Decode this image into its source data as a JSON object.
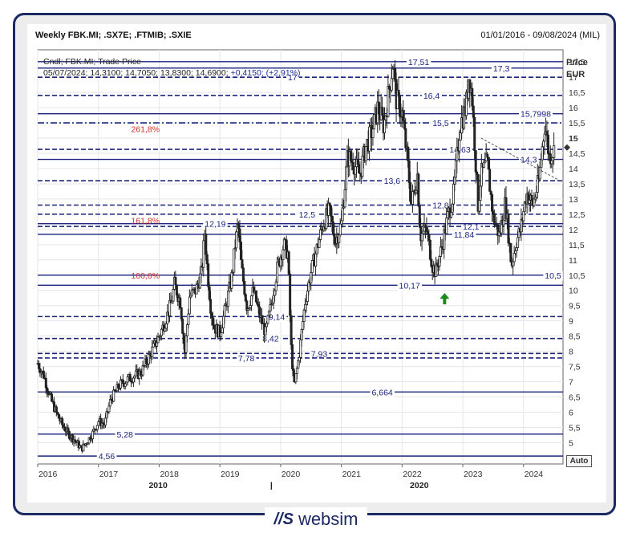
{
  "header": {
    "title": "Weekly FBK.MI; .SX7E; .FTMIB; .SXIE",
    "date_range": "01/01/2016 - 09/08/2024 (MIL)",
    "series_info": "Cndl; FBK.MI; Trade Price",
    "ohlc": "05/07/2024; 14,3100; 14,7050; 13,8300; 14,6900;",
    "change": "+0,4150; (+2,91%)"
  },
  "axis": {
    "price_label": "Price",
    "currency_label": "EUR",
    "auto_button": "Auto"
  },
  "brand": {
    "mark": "//S",
    "name": "websim"
  },
  "colors": {
    "level_line": "#1a237e",
    "fib_label": "#d32f2f",
    "candle": "#222222",
    "arrow": "#1b8a1b"
  },
  "chart_data": {
    "type": "candlestick",
    "y_range": [
      4.3,
      17.9
    ],
    "y_ticks": [
      "17,5",
      "17",
      "16,5",
      "16",
      "15,5",
      "15",
      "14,5",
      "14",
      "13,5",
      "13",
      "12,5",
      "12",
      "11,5",
      "11",
      "10,5",
      "10",
      "9,5",
      "9",
      "8,5",
      "8",
      "7,5",
      "7",
      "6,5",
      "6",
      "5,5",
      "5"
    ],
    "y_tick_values": [
      17.5,
      17,
      16.5,
      16,
      15.5,
      15,
      14.5,
      14,
      13.5,
      13,
      12.5,
      12,
      11.5,
      11,
      10.5,
      10,
      9.5,
      9,
      8.5,
      8,
      7.5,
      7,
      6.5,
      6,
      5.5,
      5
    ],
    "x_ticks": [
      "2016",
      "2017",
      "2018",
      "2019",
      "2020",
      "2021",
      "2022",
      "2023",
      "2024"
    ],
    "x_tick_years": [
      2016,
      2017,
      2018,
      2019,
      2020,
      2021,
      2022,
      2023,
      2024
    ],
    "x_range": [
      2016.0,
      2024.65
    ],
    "secondary_x_labels": [
      {
        "label": "2010",
        "year": 2018.0
      },
      {
        "label": "|",
        "year": 2020.0
      },
      {
        "label": "2020",
        "year": 2022.3
      }
    ],
    "price_path": [
      [
        2016.0,
        7.6
      ],
      [
        2016.1,
        7.2
      ],
      [
        2016.2,
        6.5
      ],
      [
        2016.3,
        6.0
      ],
      [
        2016.4,
        5.6
      ],
      [
        2016.5,
        5.3
      ],
      [
        2016.6,
        5.1
      ],
      [
        2016.72,
        4.8
      ],
      [
        2016.8,
        5.0
      ],
      [
        2016.9,
        5.3
      ],
      [
        2017.0,
        5.7
      ],
      [
        2017.1,
        5.6
      ],
      [
        2017.2,
        6.4
      ],
      [
        2017.35,
        6.9
      ],
      [
        2017.5,
        7.1
      ],
      [
        2017.7,
        7.3
      ],
      [
        2017.85,
        7.9
      ],
      [
        2018.0,
        8.5
      ],
      [
        2018.1,
        9.0
      ],
      [
        2018.2,
        9.6
      ],
      [
        2018.25,
        10.2
      ],
      [
        2018.35,
        9.6
      ],
      [
        2018.42,
        7.9
      ],
      [
        2018.5,
        9.8
      ],
      [
        2018.6,
        10.0
      ],
      [
        2018.7,
        10.6
      ],
      [
        2018.75,
        11.9
      ],
      [
        2018.8,
        10.5
      ],
      [
        2018.85,
        9.4
      ],
      [
        2018.9,
        8.8
      ],
      [
        2019.0,
        8.6
      ],
      [
        2019.1,
        9.5
      ],
      [
        2019.2,
        10.5
      ],
      [
        2019.25,
        11.5
      ],
      [
        2019.3,
        12.2
      ],
      [
        2019.35,
        10.8
      ],
      [
        2019.45,
        9.4
      ],
      [
        2019.55,
        10.0
      ],
      [
        2019.65,
        9.2
      ],
      [
        2019.75,
        8.6
      ],
      [
        2019.85,
        9.6
      ],
      [
        2019.95,
        10.8
      ],
      [
        2020.05,
        11.5
      ],
      [
        2020.12,
        11.2
      ],
      [
        2020.17,
        8.2
      ],
      [
        2020.22,
        6.8
      ],
      [
        2020.3,
        7.8
      ],
      [
        2020.4,
        9.6
      ],
      [
        2020.5,
        10.6
      ],
      [
        2020.6,
        11.4
      ],
      [
        2020.7,
        12.2
      ],
      [
        2020.8,
        12.6
      ],
      [
        2020.9,
        11.6
      ],
      [
        2021.0,
        12.2
      ],
      [
        2021.1,
        14.4
      ],
      [
        2021.2,
        14.2
      ],
      [
        2021.3,
        13.8
      ],
      [
        2021.4,
        14.7
      ],
      [
        2021.5,
        15.2
      ],
      [
        2021.6,
        16.0
      ],
      [
        2021.7,
        15.4
      ],
      [
        2021.8,
        16.8
      ],
      [
        2021.85,
        17.5
      ],
      [
        2021.9,
        16.3
      ],
      [
        2022.0,
        15.8
      ],
      [
        2022.1,
        14.0
      ],
      [
        2022.15,
        12.8
      ],
      [
        2022.25,
        13.8
      ],
      [
        2022.3,
        11.8
      ],
      [
        2022.4,
        12.0
      ],
      [
        2022.5,
        10.8
      ],
      [
        2022.55,
        10.6
      ],
      [
        2022.65,
        11.4
      ],
      [
        2022.75,
        12.4
      ],
      [
        2022.85,
        13.2
      ],
      [
        2022.95,
        15.4
      ],
      [
        2023.05,
        16.0
      ],
      [
        2023.1,
        17.1
      ],
      [
        2023.15,
        16.4
      ],
      [
        2023.25,
        12.8
      ],
      [
        2023.3,
        13.8
      ],
      [
        2023.4,
        14.2
      ],
      [
        2023.5,
        12.4
      ],
      [
        2023.6,
        11.8
      ],
      [
        2023.7,
        12.9
      ],
      [
        2023.8,
        10.8
      ],
      [
        2023.88,
        11.6
      ],
      [
        2023.95,
        12.0
      ],
      [
        2024.05,
        13.2
      ],
      [
        2024.15,
        12.8
      ],
      [
        2024.25,
        13.6
      ],
      [
        2024.35,
        15.5
      ],
      [
        2024.42,
        14.4
      ],
      [
        2024.5,
        14.6
      ]
    ],
    "levels": [
      {
        "value": 17.51,
        "label": "17,51",
        "style": "solid",
        "label_year": 2022.1
      },
      {
        "value": 17.3,
        "label": "17,3",
        "style": "solid",
        "label_year": 2023.5
      },
      {
        "value": 17,
        "label": "17",
        "style": "dashed",
        "label_year": 2020.12
      },
      {
        "value": 16.4,
        "label": "16,4",
        "style": "dashed",
        "label_year": 2022.35
      },
      {
        "value": 15.7998,
        "label": "15,7998",
        "style": "solid",
        "label_year": 2023.95
      },
      {
        "value": 15.5,
        "label": "15,5",
        "style": "dashdot",
        "label_year": 2022.5
      },
      {
        "value": 14.63,
        "label": "14,63",
        "style": "dashed",
        "label_year": 2022.78
      },
      {
        "value": 14.3,
        "label": "14,3",
        "style": "solid",
        "label_year": 2023.95
      },
      {
        "value": 13.6,
        "label": "13,6",
        "style": "dashed",
        "label_year": 2021.7
      },
      {
        "value": 12.8,
        "label": "12,8",
        "style": "dashed",
        "label_year": 2022.5
      },
      {
        "value": 12.5,
        "label": "12,5",
        "style": "dashed",
        "label_year": 2020.3
      },
      {
        "value": 12.1,
        "label": "12,1",
        "style": "dashed",
        "label_year": 2023.0
      },
      {
        "value": 11.84,
        "label": "11,84",
        "style": "solid",
        "label_year": 2022.85
      },
      {
        "value": 12.19,
        "label": "12,19",
        "style": "solid",
        "label_year": 2018.75
      },
      {
        "value": 10.5,
        "label": "10,5",
        "style": "solid",
        "label_year": 2024.35
      },
      {
        "value": 10.17,
        "label": "10,17",
        "style": "solid",
        "label_year": 2021.95
      },
      {
        "value": 9.14,
        "label": "9,14",
        "style": "dashed",
        "label_year": 2019.8
      },
      {
        "value": 8.42,
        "label": "8,42",
        "style": "dashed",
        "label_year": 2019.7
      },
      {
        "value": 7.93,
        "label": "7,93",
        "style": "dashed",
        "label_year": 2020.5
      },
      {
        "value": 7.78,
        "label": "7,78",
        "style": "dashed",
        "label_year": 2019.3
      },
      {
        "value": 6.664,
        "label": "6,664",
        "style": "solid",
        "label_year": 2021.5
      },
      {
        "value": 5.28,
        "label": "5,28",
        "style": "solid",
        "label_year": 2017.3
      },
      {
        "value": 4.56,
        "label": "4,56",
        "style": "solid",
        "label_year": 2017.0
      }
    ],
    "fib_labels": [
      {
        "label": "261,8%",
        "value": 15.3,
        "label_year": 2017.3
      },
      {
        "label": "161,8%",
        "value": 12.3,
        "label_year": 2017.3
      },
      {
        "label": "100,0%",
        "value": 10.5,
        "label_year": 2017.3
      }
    ],
    "trendline": {
      "from": [
        2023.3,
        15.0
      ],
      "to": [
        2024.6,
        13.6
      ]
    },
    "marker": {
      "type": "up-arrow",
      "year": 2022.7,
      "value": 9.7
    }
  }
}
